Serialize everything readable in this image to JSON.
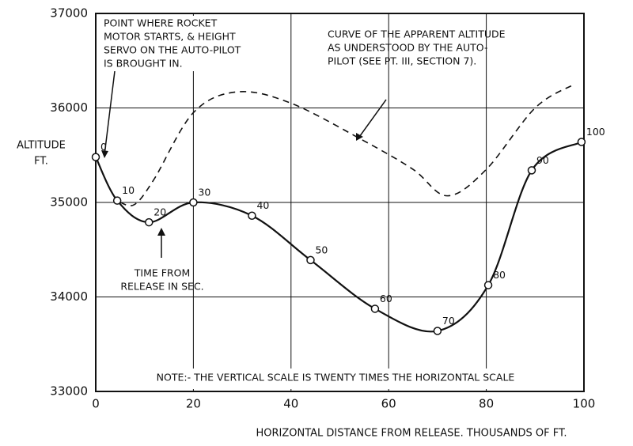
{
  "chart_data": {
    "type": "line",
    "y_label": [
      "ALTITUDE",
      "FT."
    ],
    "x_label": "HORIZONTAL DISTANCE FROM RELEASE. THOUSANDS OF FT.",
    "xlim": [
      0,
      100
    ],
    "xticks": [
      0,
      20,
      40,
      60,
      80,
      100
    ],
    "ylim": [
      33000,
      37000
    ],
    "yticks": [
      33000,
      34000,
      35000,
      36000,
      37000
    ],
    "grid": true,
    "series": [
      {
        "color": "#111",
        "style": "solid",
        "markers": true,
        "x": [
          0,
          4.4,
          10.9,
          20,
          32,
          44,
          57.2,
          70,
          80.4,
          89.3,
          99.5
        ],
        "values": [
          35480,
          35020,
          34790,
          35000,
          34860,
          34390,
          33875,
          33640,
          34125,
          35340,
          35640
        ],
        "point_labels": [
          "0",
          "10",
          "20",
          "30",
          "40",
          "50",
          "60",
          "70",
          "80",
          "90",
          "100"
        ]
      },
      {
        "color": "#111",
        "style": "dashed",
        "markers": false,
        "x": [
          5,
          8,
          12,
          20,
          29,
          40,
          55,
          65,
          72,
          80,
          90,
          98
        ],
        "values": [
          35000,
          34980,
          35250,
          35950,
          36170,
          36050,
          35650,
          35350,
          35070,
          35350,
          36000,
          36250
        ]
      }
    ],
    "annotations": [
      [
        "POINT WHERE ROCKET",
        "MOTOR STARTS, & HEIGHT",
        "SERVO ON THE AUTO-PILOT",
        "IS BROUGHT IN."
      ],
      [
        "CURVE OF THE APPARENT ALTITUDE",
        "AS UNDERSTOOD BY THE AUTO-",
        "PILOT (SEE PT. III, SECTION 7)."
      ],
      [
        "TIME FROM",
        "RELEASE IN SEC."
      ],
      [
        "NOTE:- THE VERTICAL SCALE IS TWENTY TIMES THE HORIZONTAL SCALE"
      ]
    ]
  }
}
